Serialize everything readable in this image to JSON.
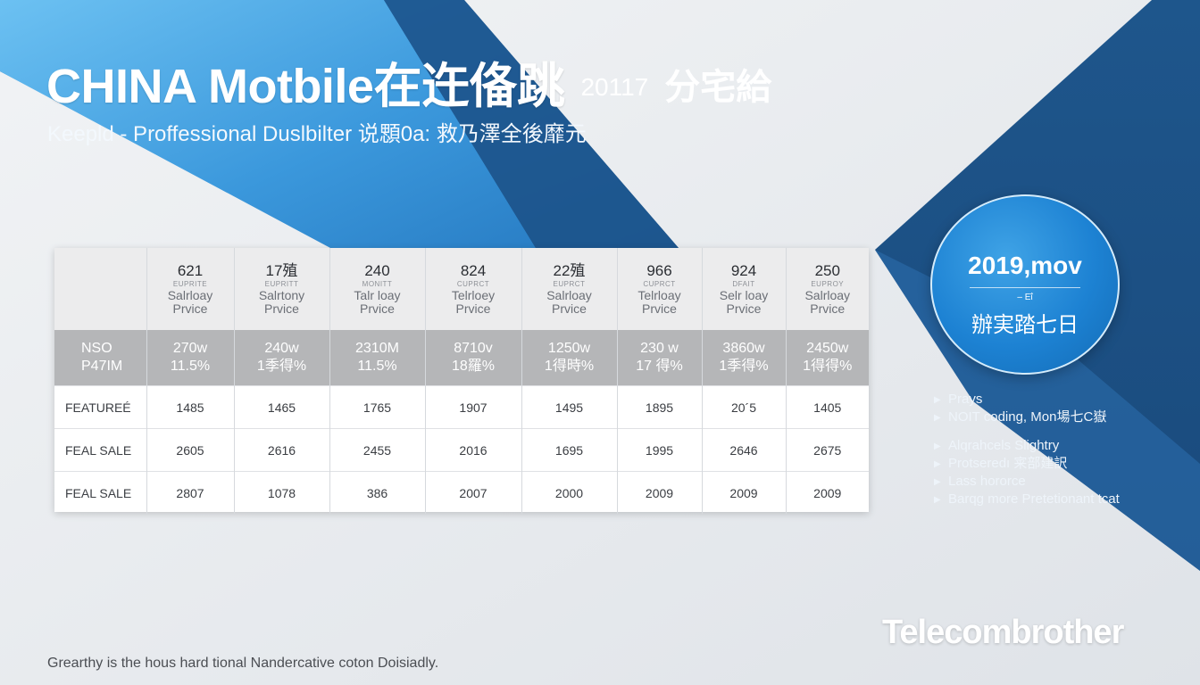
{
  "header": {
    "title": "CHINA Motbile在迕俻跳",
    "title_year": "20117",
    "title_tail": "分宅給",
    "subtitle": "Keepld - Proffessional Duslbilter  说顋0a:  救乃澤全後靡元"
  },
  "table": {
    "columns": [
      {
        "num": "621",
        "tag": "EUPRITE",
        "line1": "Salrloay",
        "line2": "Prvice"
      },
      {
        "num": "17殖",
        "tag": "EUPRITT",
        "line1": "Salrtony",
        "line2": "Prvice"
      },
      {
        "num": "240",
        "tag": "MONITT",
        "line1": "Talr loay",
        "line2": "Prvice"
      },
      {
        "num": "824",
        "tag": "CUPRCT",
        "line1": "Telrloey",
        "line2": "Prvice"
      },
      {
        "num": "22殖",
        "tag": "EUPRCT",
        "line1": "Salrloay",
        "line2": "Prvice"
      },
      {
        "num": "966",
        "tag": "CUPRCT",
        "line1": "Telrloay",
        "line2": "Prvice"
      },
      {
        "num": "924",
        "tag": "DFAIT",
        "line1": "Selr loay",
        "line2": "Prvice"
      },
      {
        "num": "250",
        "tag": "EUPROY",
        "line1": "Salrloay",
        "line2": "Prvice"
      }
    ],
    "grey_row": {
      "label_1": "NSO",
      "label_2": "P47IM",
      "cells": [
        {
          "a": "270w",
          "b": "11.5%"
        },
        {
          "a": "240w",
          "b": "1季得%"
        },
        {
          "a": "2310M",
          "b": "11.5%"
        },
        {
          "a": "8710v",
          "b": "18羅%"
        },
        {
          "a": "1250w",
          "b": "1得時%"
        },
        {
          "a": "230 w",
          "b": "17 得%"
        },
        {
          "a": "3860w",
          "b": "1季得%"
        },
        {
          "a": "2450w",
          "b": "1得得%"
        }
      ]
    },
    "rows": [
      {
        "label": "FEATUREÉ",
        "values": [
          "1485",
          "1465",
          "1765",
          "1907",
          "1495",
          "1895",
          "20´5",
          "1405"
        ]
      },
      {
        "label": "FEAL SALE",
        "values": [
          "2605",
          "2616",
          "2455",
          "2016",
          "1695",
          "1995",
          "2646",
          "2675"
        ]
      },
      {
        "label": "FEAL SALE",
        "values": [
          "2807",
          "1078",
          "386",
          "2007",
          "2000",
          "2009",
          "2009",
          "2009"
        ]
      }
    ]
  },
  "badge": {
    "main": "2019,mov",
    "sub": "– Eΐ",
    "cn": "辦実踏七日"
  },
  "bullets_group_1": [
    {
      "text": "Prays"
    },
    {
      "text": "NOIT coding, Mon場七C嶽"
    }
  ],
  "bullets_group_2": [
    {
      "text": "Alqrahcels Slightry"
    },
    {
      "text": "Protseredı  宷部建訳"
    },
    {
      "text": "Lass hororce"
    },
    {
      "text": "Barqg more Pretetionant tcat"
    }
  ],
  "brand": "Telecombrother",
  "footer": "Grearthy is the hous hard tional Nandercative coton Doisiadly.",
  "colors": {
    "dark_blue": "#1a4f83",
    "mid_blue": "#2f72b3",
    "light_blue": "#4faee8",
    "badge_blue": "#1d82d3",
    "table_grey": "#b5b6b8"
  }
}
